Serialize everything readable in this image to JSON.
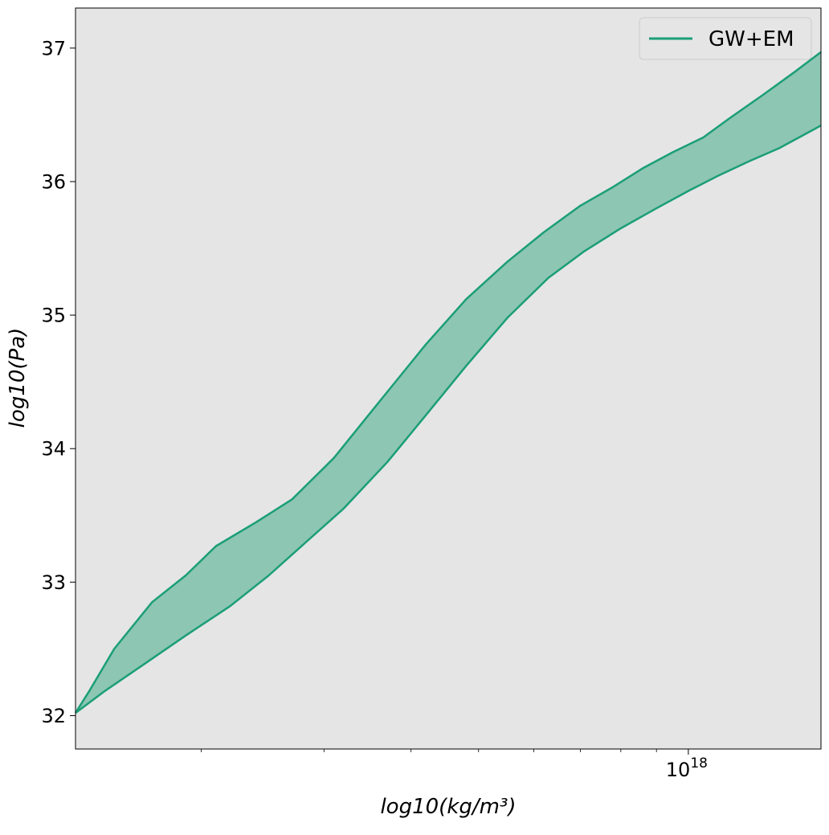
{
  "chart_data": {
    "type": "area",
    "xlabel": "log10(kg/m³)",
    "ylabel": "log10(Pa)",
    "xscale": "log",
    "xlim": [
      1.32e+17,
      1.55e+18
    ],
    "ylim": [
      31.75,
      37.3
    ],
    "x_tick_labels": [
      {
        "value": 1e+18,
        "base": "10",
        "exp": "18"
      }
    ],
    "y_ticks": [
      32,
      33,
      34,
      35,
      36,
      37
    ],
    "y_tick_labels": [
      "32",
      "33",
      "34",
      "35",
      "36",
      "37"
    ],
    "legend": {
      "position": "top-right",
      "entries": [
        "GW+EM"
      ]
    },
    "grid": false,
    "background_color": "#e5e5e5",
    "series": [
      {
        "name": "GW+EM",
        "color": "#1b9e77",
        "fill_color": "#8dc6b2",
        "upper": {
          "x": [
            1.32e+17,
            1.38e+17,
            1.5e+17,
            1.7e+17,
            1.9e+17,
            2.1e+17,
            2.4e+17,
            2.7e+17,
            3.1e+17,
            3.6e+17,
            4.2e+17,
            4.8e+17,
            5.5e+17,
            6.2e+17,
            7e+17,
            7.8e+17,
            8.6e+17,
            9.5e+17,
            1.05e+18,
            1.15e+18,
            1.28e+18,
            1.42e+18,
            1.55e+18
          ],
          "y": [
            32.02,
            32.18,
            32.5,
            32.85,
            33.05,
            33.27,
            33.45,
            33.62,
            33.93,
            34.35,
            34.78,
            35.12,
            35.4,
            35.62,
            35.82,
            35.96,
            36.1,
            36.22,
            36.33,
            36.48,
            36.65,
            36.82,
            36.97
          ]
        },
        "lower": {
          "x": [
            1.32e+17,
            1.45e+17,
            1.65e+17,
            1.9e+17,
            2.2e+17,
            2.5e+17,
            2.8e+17,
            3.2e+17,
            3.7e+17,
            4.2e+17,
            4.8e+17,
            5.5e+17,
            6.3e+17,
            7.1e+17,
            8e+17,
            9e+17,
            1e+18,
            1.1e+18,
            1.22e+18,
            1.35e+18,
            1.55e+18
          ],
          "y": [
            32.02,
            32.18,
            32.38,
            32.6,
            32.82,
            33.05,
            33.28,
            33.55,
            33.9,
            34.25,
            34.62,
            34.98,
            35.28,
            35.48,
            35.65,
            35.8,
            35.93,
            36.04,
            36.15,
            36.25,
            36.42
          ]
        }
      }
    ]
  }
}
